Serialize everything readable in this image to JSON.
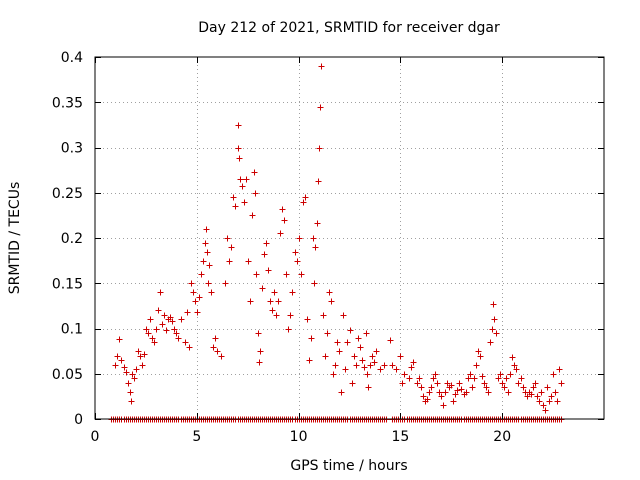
{
  "chart_data": {
    "type": "scatter",
    "title": "Day 212 of 2021, SRMTID for receiver dgar",
    "xlabel": "GPS time / hours",
    "ylabel": "SRMTID / TECUs",
    "xlim": [
      0,
      25
    ],
    "ylim": [
      0,
      0.4
    ],
    "x_ticks": [
      0,
      5,
      10,
      15,
      20
    ],
    "x_tick_labels": [
      "0",
      "5",
      "10",
      "15",
      "20"
    ],
    "y_ticks": [
      0,
      0.05,
      0.1,
      0.15,
      0.2,
      0.25,
      0.3,
      0.35,
      0.4
    ],
    "y_tick_labels": [
      "0",
      "0.05",
      "0.1",
      "0.15",
      "0.2",
      "0.25",
      "0.3",
      "0.35",
      "0.4"
    ],
    "grid": true,
    "marker": "+",
    "color": "#cc0000",
    "series": [
      {
        "name": "SRMTID",
        "points": [
          [
            1.0,
            0.06
          ],
          [
            1.1,
            0.07
          ],
          [
            1.2,
            0.088
          ],
          [
            1.3,
            0.065
          ],
          [
            1.4,
            0.058
          ],
          [
            1.5,
            0.052
          ],
          [
            1.6,
            0.04
          ],
          [
            1.7,
            0.03
          ],
          [
            1.75,
            0.02
          ],
          [
            1.8,
            0.05
          ],
          [
            1.9,
            0.045
          ],
          [
            2.0,
            0.055
          ],
          [
            2.1,
            0.075
          ],
          [
            2.2,
            0.07
          ],
          [
            2.3,
            0.06
          ],
          [
            2.4,
            0.072
          ],
          [
            2.5,
            0.1
          ],
          [
            2.6,
            0.095
          ],
          [
            2.7,
            0.11
          ],
          [
            2.8,
            0.09
          ],
          [
            2.9,
            0.085
          ],
          [
            3.0,
            0.1
          ],
          [
            3.1,
            0.12
          ],
          [
            3.2,
            0.14
          ],
          [
            3.3,
            0.105
          ],
          [
            3.4,
            0.115
          ],
          [
            3.5,
            0.098
          ],
          [
            3.6,
            0.11
          ],
          [
            3.7,
            0.113
          ],
          [
            3.8,
            0.108
          ],
          [
            3.9,
            0.1
          ],
          [
            4.0,
            0.095
          ],
          [
            4.1,
            0.09
          ],
          [
            4.2,
            0.11
          ],
          [
            4.4,
            0.085
          ],
          [
            4.5,
            0.118
          ],
          [
            4.6,
            0.08
          ],
          [
            4.7,
            0.15
          ],
          [
            4.8,
            0.14
          ],
          [
            4.9,
            0.13
          ],
          [
            5.0,
            0.118
          ],
          [
            5.1,
            0.135
          ],
          [
            5.2,
            0.16
          ],
          [
            5.3,
            0.175
          ],
          [
            5.4,
            0.195
          ],
          [
            5.45,
            0.21
          ],
          [
            5.5,
            0.185
          ],
          [
            5.55,
            0.15
          ],
          [
            5.6,
            0.17
          ],
          [
            5.7,
            0.14
          ],
          [
            5.8,
            0.08
          ],
          [
            5.9,
            0.09
          ],
          [
            6.0,
            0.075
          ],
          [
            6.2,
            0.07
          ],
          [
            6.4,
            0.15
          ],
          [
            6.5,
            0.2
          ],
          [
            6.6,
            0.175
          ],
          [
            6.7,
            0.19
          ],
          [
            6.8,
            0.245
          ],
          [
            6.9,
            0.235
          ],
          [
            7.0,
            0.325
          ],
          [
            7.02,
            0.3
          ],
          [
            7.05,
            0.288
          ],
          [
            7.1,
            0.265
          ],
          [
            7.2,
            0.258
          ],
          [
            7.3,
            0.24
          ],
          [
            7.4,
            0.265
          ],
          [
            7.5,
            0.175
          ],
          [
            7.6,
            0.13
          ],
          [
            7.7,
            0.225
          ],
          [
            7.8,
            0.273
          ],
          [
            7.85,
            0.25
          ],
          [
            7.9,
            0.16
          ],
          [
            8.0,
            0.095
          ],
          [
            8.05,
            0.063
          ],
          [
            8.1,
            0.075
          ],
          [
            8.2,
            0.145
          ],
          [
            8.3,
            0.182
          ],
          [
            8.4,
            0.195
          ],
          [
            8.5,
            0.165
          ],
          [
            8.6,
            0.13
          ],
          [
            8.7,
            0.12
          ],
          [
            8.8,
            0.14
          ],
          [
            8.9,
            0.115
          ],
          [
            9.0,
            0.13
          ],
          [
            9.1,
            0.205
          ],
          [
            9.2,
            0.232
          ],
          [
            9.3,
            0.22
          ],
          [
            9.4,
            0.16
          ],
          [
            9.5,
            0.1
          ],
          [
            9.6,
            0.115
          ],
          [
            9.7,
            0.14
          ],
          [
            9.8,
            0.185
          ],
          [
            9.9,
            0.175
          ],
          [
            10.0,
            0.2
          ],
          [
            10.1,
            0.16
          ],
          [
            10.2,
            0.24
          ],
          [
            10.3,
            0.245
          ],
          [
            10.4,
            0.11
          ],
          [
            10.5,
            0.065
          ],
          [
            10.6,
            0.09
          ],
          [
            10.7,
            0.2
          ],
          [
            10.75,
            0.15
          ],
          [
            10.8,
            0.19
          ],
          [
            10.9,
            0.217
          ],
          [
            10.95,
            0.263
          ],
          [
            11.0,
            0.3
          ],
          [
            11.05,
            0.345
          ],
          [
            11.1,
            0.39
          ],
          [
            11.2,
            0.115
          ],
          [
            11.3,
            0.07
          ],
          [
            11.4,
            0.095
          ],
          [
            11.5,
            0.14
          ],
          [
            11.6,
            0.13
          ],
          [
            11.7,
            0.05
          ],
          [
            11.8,
            0.06
          ],
          [
            11.9,
            0.085
          ],
          [
            12.0,
            0.075
          ],
          [
            12.1,
            0.03
          ],
          [
            12.2,
            0.115
          ],
          [
            12.3,
            0.055
          ],
          [
            12.4,
            0.085
          ],
          [
            12.5,
            0.098
          ],
          [
            12.6,
            0.04
          ],
          [
            12.7,
            0.07
          ],
          [
            12.8,
            0.06
          ],
          [
            12.9,
            0.09
          ],
          [
            13.0,
            0.08
          ],
          [
            13.1,
            0.065
          ],
          [
            13.2,
            0.058
          ],
          [
            13.3,
            0.095
          ],
          [
            13.35,
            0.05
          ],
          [
            13.4,
            0.035
          ],
          [
            13.5,
            0.06
          ],
          [
            13.6,
            0.07
          ],
          [
            13.7,
            0.063
          ],
          [
            13.8,
            0.075
          ],
          [
            14.0,
            0.055
          ],
          [
            14.2,
            0.06
          ],
          [
            14.5,
            0.087
          ],
          [
            14.6,
            0.06
          ],
          [
            14.8,
            0.055
          ],
          [
            15.0,
            0.07
          ],
          [
            15.1,
            0.04
          ],
          [
            15.2,
            0.05
          ],
          [
            15.4,
            0.045
          ],
          [
            15.5,
            0.058
          ],
          [
            15.6,
            0.063
          ],
          [
            15.8,
            0.04
          ],
          [
            15.9,
            0.045
          ],
          [
            16.0,
            0.035
          ],
          [
            16.1,
            0.025
          ],
          [
            16.2,
            0.02
          ],
          [
            16.3,
            0.022
          ],
          [
            16.4,
            0.03
          ],
          [
            16.5,
            0.035
          ],
          [
            16.6,
            0.045
          ],
          [
            16.7,
            0.05
          ],
          [
            16.8,
            0.04
          ],
          [
            16.9,
            0.03
          ],
          [
            17.0,
            0.025
          ],
          [
            17.1,
            0.015
          ],
          [
            17.2,
            0.03
          ],
          [
            17.3,
            0.04
          ],
          [
            17.4,
            0.035
          ],
          [
            17.5,
            0.038
          ],
          [
            17.6,
            0.02
          ],
          [
            17.7,
            0.028
          ],
          [
            17.8,
            0.032
          ],
          [
            17.9,
            0.04
          ],
          [
            18.0,
            0.033
          ],
          [
            18.1,
            0.028
          ],
          [
            18.2,
            0.03
          ],
          [
            18.3,
            0.045
          ],
          [
            18.4,
            0.05
          ],
          [
            18.5,
            0.035
          ],
          [
            18.6,
            0.045
          ],
          [
            18.7,
            0.06
          ],
          [
            18.8,
            0.075
          ],
          [
            18.9,
            0.07
          ],
          [
            19.0,
            0.048
          ],
          [
            19.1,
            0.04
          ],
          [
            19.2,
            0.035
          ],
          [
            19.3,
            0.03
          ],
          [
            19.4,
            0.085
          ],
          [
            19.5,
            0.1
          ],
          [
            19.55,
            0.127
          ],
          [
            19.6,
            0.11
          ],
          [
            19.7,
            0.095
          ],
          [
            19.8,
            0.045
          ],
          [
            19.9,
            0.05
          ],
          [
            20.0,
            0.04
          ],
          [
            20.1,
            0.035
          ],
          [
            20.2,
            0.045
          ],
          [
            20.3,
            0.03
          ],
          [
            20.4,
            0.05
          ],
          [
            20.5,
            0.068
          ],
          [
            20.6,
            0.06
          ],
          [
            20.7,
            0.055
          ],
          [
            20.8,
            0.04
          ],
          [
            20.9,
            0.045
          ],
          [
            21.0,
            0.035
          ],
          [
            21.1,
            0.03
          ],
          [
            21.2,
            0.025
          ],
          [
            21.3,
            0.03
          ],
          [
            21.4,
            0.028
          ],
          [
            21.5,
            0.035
          ],
          [
            21.6,
            0.04
          ],
          [
            21.7,
            0.025
          ],
          [
            21.8,
            0.02
          ],
          [
            21.9,
            0.03
          ],
          [
            22.0,
            0.015
          ],
          [
            22.1,
            0.01
          ],
          [
            22.2,
            0.035
          ],
          [
            22.3,
            0.02
          ],
          [
            22.4,
            0.025
          ],
          [
            22.5,
            0.05
          ],
          [
            22.6,
            0.03
          ],
          [
            22.7,
            0.02
          ],
          [
            22.8,
            0.055
          ],
          [
            22.9,
            0.04
          ]
        ]
      }
    ],
    "zero_baseline": {
      "y": 0,
      "x_from": 0.8,
      "x_to": 22.9,
      "x_step": 0.1,
      "gaps": [
        [
          4.9,
          5.0
        ],
        [
          9.3,
          9.4
        ],
        [
          14.3,
          14.6
        ]
      ]
    }
  }
}
